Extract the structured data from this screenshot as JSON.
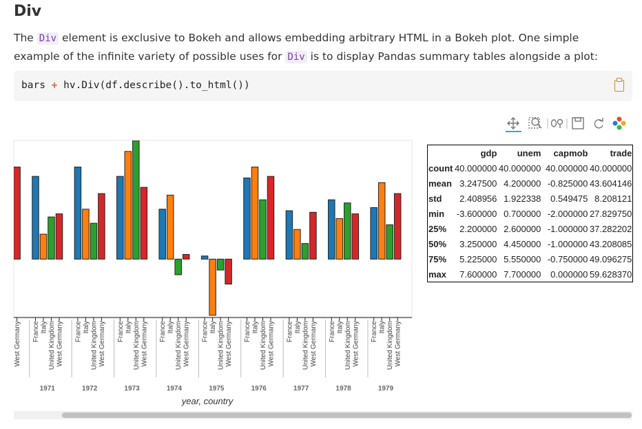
{
  "header": {
    "title": "Div"
  },
  "paragraph": {
    "parts": [
      "The ",
      "Div",
      " element is exclusive to Bokeh and allows embedding arbitrary HTML in a Bokeh plot. One simple example of the infinite variety of possible uses for ",
      "Div",
      " is to display Pandas summary tables alongside a plot:"
    ]
  },
  "code": {
    "parts": [
      "bars ",
      "+",
      " hv.Div(df.describe().to_html())"
    ]
  },
  "chart_data": {
    "type": "bar",
    "x_label": "year, country",
    "categories": [
      "West Germany",
      "France",
      "Italy",
      "United Kingdom",
      "West Germany",
      "France",
      "Italy",
      "United Kingdom",
      "West Germany",
      "France",
      "Italy",
      "United Kingdom",
      "West Germany",
      "France",
      "Italy",
      "United Kingdom",
      "West Germany",
      "France",
      "Italy",
      "United Kingdom",
      "West Germany",
      "France",
      "Italy",
      "United Kingdom",
      "West Germany",
      "France",
      "Italy",
      "United Kingdom",
      "West Germany",
      "France",
      "Italy",
      "United Kingdom",
      "West Germany",
      "France",
      "Italy",
      "United Kingdom",
      "West Germany"
    ],
    "groups": [
      "1971",
      "1972",
      "1973",
      "1974",
      "1975",
      "1976",
      "1977",
      "1978",
      "1979"
    ],
    "values": [
      5.9,
      5.3,
      1.6,
      2.7,
      2.9,
      5.9,
      3.2,
      2.3,
      4.2,
      5.3,
      6.9,
      7.6,
      4.6,
      3.2,
      4.1,
      -1.0,
      0.3,
      0.2,
      -3.6,
      -0.7,
      -1.6,
      5.2,
      5.9,
      3.8,
      5.3,
      3.1,
      1.9,
      1.0,
      3.0,
      3.8,
      2.6,
      3.6,
      2.9,
      3.3,
      4.9,
      2.2,
      4.2
    ],
    "palette": {
      "France": "#1f77b4",
      "Italy": "#ff7f0e",
      "United Kingdom": "#2ca02c",
      "West Germany": "#d62728"
    },
    "ylim": [
      -3.78,
      7.6
    ]
  },
  "table": {
    "columns": [
      "gdp",
      "unem",
      "capmob",
      "trade"
    ],
    "rows": [
      [
        "count",
        "40.000000",
        "40.000000",
        "40.000000",
        "40.000000"
      ],
      [
        "mean",
        "3.247500",
        "4.200000",
        "-0.825000",
        "43.604146"
      ],
      [
        "std",
        "2.408956",
        "1.922338",
        "0.549475",
        "8.208121"
      ],
      [
        "min",
        "-3.600000",
        "0.700000",
        "-2.000000",
        "27.829750"
      ],
      [
        "25%",
        "2.200000",
        "2.600000",
        "-1.000000",
        "37.282202"
      ],
      [
        "50%",
        "3.250000",
        "4.450000",
        "-1.000000",
        "43.208085"
      ],
      [
        "75%",
        "5.225000",
        "5.550000",
        "-0.750000",
        "49.096275"
      ],
      [
        "max",
        "7.600000",
        "7.700000",
        "0.000000",
        "59.628370"
      ]
    ]
  }
}
